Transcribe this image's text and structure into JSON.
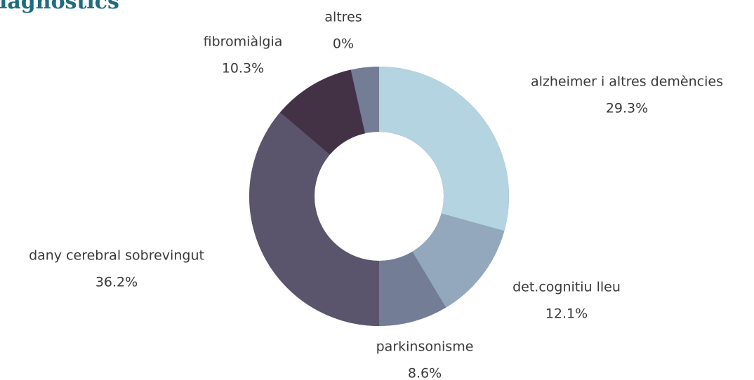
{
  "chart_data": {
    "type": "donut",
    "title": "diagnostics",
    "categories": [
      "alzheimer i altres demències",
      "det.cognitiu lleu",
      "parkinsonisme",
      "dany cerebral sobrevingut",
      "fibromiàlgia",
      "altres"
    ],
    "values": [
      29.3,
      12.1,
      8.6,
      36.2,
      10.3,
      0
    ],
    "value_labels": [
      "29.3%",
      "12.1%",
      "8.6%",
      "36.2%",
      "10.3%",
      "0%"
    ],
    "colors": [
      "#b3d4e0",
      "#93a8bd",
      "#737d96",
      "#5a556c",
      "#433246",
      "#737d96"
    ]
  }
}
